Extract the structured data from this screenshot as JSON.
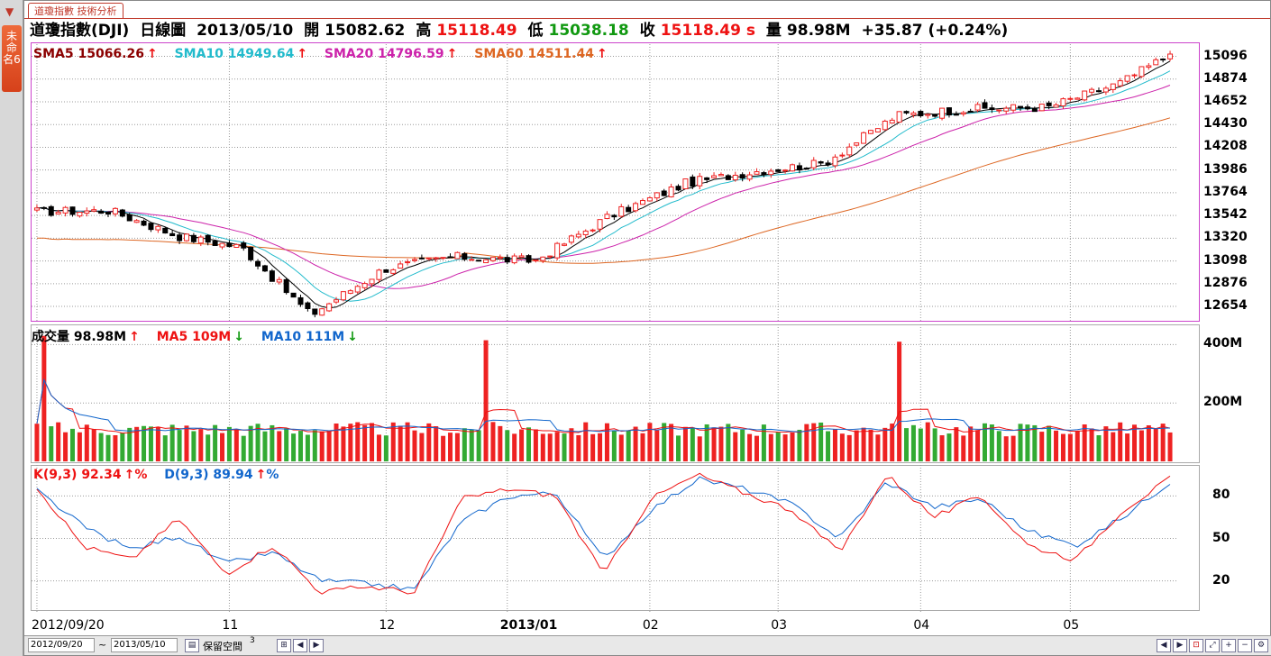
{
  "sidebar": {
    "arrow": "▼",
    "tab_label": "未命名6"
  },
  "tab": {
    "title": "道瓊指數 技術分析"
  },
  "info": {
    "symbol": "道瓊指數(DJI)",
    "period": "日線圖",
    "date": "2013/05/10",
    "open_label": "開",
    "open_value": "15082.62",
    "high_label": "高",
    "high_value": "15118.49",
    "low_label": "低",
    "low_value": "15038.18",
    "close_label": "收",
    "close_value": "15118.49 s",
    "volume_label": "量",
    "volume_value": "98.98M",
    "change": "+35.87 (+0.24%)"
  },
  "price_legend": {
    "sma5": "SMA5 15066.26",
    "sma10": "SMA10 14949.64",
    "sma20": "SMA20 14796.59",
    "sma60": "SMA60 14511.44",
    "arrow_up": "↑"
  },
  "volume_legend": {
    "vol": "成交量 98.98M",
    "ma5": "MA5 109M",
    "ma10": "MA10 111M",
    "arrow_up": "↑",
    "arrow_down": "↓"
  },
  "kd_legend": {
    "k": "K(9,3) 92.34",
    "d": "D(9,3) 89.94",
    "suffix": "%"
  },
  "price_axis": [
    "15096",
    "14874",
    "14652",
    "14430",
    "14208",
    "13986",
    "13764",
    "13542",
    "13320",
    "13098",
    "12876",
    "12654"
  ],
  "volume_axis": [
    "400M",
    "200M"
  ],
  "kd_axis": [
    "80",
    "50",
    "20"
  ],
  "date_axis": [
    "2012/09/20",
    "11",
    "12",
    "2013/01",
    "02",
    "03",
    "04",
    "05"
  ],
  "bottom": {
    "start_date": "2012/09/20",
    "tilde": "~",
    "end_date": "2013/05/10",
    "reserve_label": "保留空間",
    "reserve_value": "3"
  },
  "colors": {
    "up": "#ee2222",
    "down": "#000000",
    "sma5": "#000000",
    "sma10": "#22bbcc",
    "sma20": "#cc22aa",
    "sma60": "#dd6622",
    "vol_up": "#ee2222",
    "vol_down": "#33aa33",
    "k": "#ee1111",
    "d": "#1166cc"
  },
  "chart_data": {
    "type": "candlestick",
    "x_range": [
      "2012/09/20",
      "2013/05/10"
    ],
    "price_range": [
      12540,
      15180
    ],
    "date_ticks": [
      "2012/09/20",
      "11",
      "12",
      "2013/01",
      "02",
      "03",
      "04",
      "05"
    ],
    "close_anchors": [
      {
        "date": "2012/09/20",
        "close": 13580
      },
      {
        "date": "2012/10/05",
        "close": 13590
      },
      {
        "date": "2012/10/19",
        "close": 13340
      },
      {
        "date": "2012/11/01",
        "close": 13230
      },
      {
        "date": "2012/11/15",
        "close": 12570
      },
      {
        "date": "2012/11/30",
        "close": 13020
      },
      {
        "date": "2012/12/14",
        "close": 13140
      },
      {
        "date": "2012/12/31",
        "close": 13100
      },
      {
        "date": "2013/01/15",
        "close": 13530
      },
      {
        "date": "2013/01/31",
        "close": 13860
      },
      {
        "date": "2013/02/15",
        "close": 13980
      },
      {
        "date": "2013/02/28",
        "close": 14050
      },
      {
        "date": "2013/03/15",
        "close": 14520
      },
      {
        "date": "2013/03/29",
        "close": 14580
      },
      {
        "date": "2013/04/15",
        "close": 14600
      },
      {
        "date": "2013/04/30",
        "close": 14840
      },
      {
        "date": "2013/05/10",
        "close": 15118.49
      }
    ],
    "volume_range": [
      0,
      460
    ],
    "volume_spikes_M": [
      {
        "date": "2012/09/21",
        "volume": 430
      },
      {
        "date": "2012/12/21",
        "volume": 415
      },
      {
        "date": "2013/03/15",
        "volume": 410
      }
    ],
    "kd_range": [
      0,
      100
    ],
    "k_anchors": [
      86,
      44,
      35,
      64,
      25,
      45,
      12,
      16,
      12,
      78,
      85,
      80,
      24,
      78,
      95,
      82,
      70,
      40,
      95,
      65,
      80,
      45,
      35,
      70,
      92.34
    ],
    "d_anchors": [
      84,
      58,
      42,
      52,
      32,
      40,
      20,
      18,
      14,
      62,
      80,
      82,
      35,
      70,
      92,
      85,
      74,
      50,
      90,
      72,
      78,
      55,
      45,
      65,
      89.94
    ]
  }
}
